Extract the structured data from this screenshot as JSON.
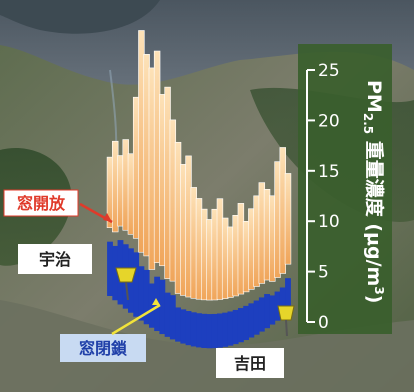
{
  "chart_data": {
    "type": "bar",
    "title": "",
    "axis_label": {
      "main": "PM",
      "subscript": "2.5",
      "rest": " 重量濃度 (μg/m",
      "sup": "3",
      "close": ")"
    },
    "ylim": [
      0,
      25
    ],
    "ticks": [
      "0",
      "5",
      "10",
      "15",
      "20",
      "25"
    ],
    "series": [
      {
        "name": "窓開放",
        "color": "#f4b06a",
        "values": [
          11,
          13,
          12,
          14,
          13,
          19,
          26,
          24,
          23,
          25,
          21,
          22,
          19,
          17,
          15,
          16,
          13,
          12,
          11,
          10,
          11,
          12,
          10,
          9,
          10,
          11,
          9,
          10,
          11,
          12,
          11,
          10,
          13,
          14,
          11
        ]
      },
      {
        "name": "窓閉鎖",
        "color": "#1d3fbf",
        "values": [
          4,
          4,
          5,
          5,
          5,
          5,
          4,
          4,
          3,
          4,
          4,
          3,
          3,
          2,
          2,
          2,
          2,
          2,
          2,
          2,
          2,
          2,
          2,
          2,
          2,
          2,
          2,
          2,
          2,
          2,
          2,
          1.5,
          1.5,
          1.5,
          2
        ]
      }
    ],
    "annotations": {
      "open": "窓開放",
      "closed": "窓閉鎖",
      "place_left": "宇治",
      "place_right": "吉田"
    },
    "colors": {
      "axis_panel": "#3a5e2c",
      "open_label": "#e03a2a",
      "closed_label_bg": "#c8daf2",
      "closed_label_text": "#1f3fa8",
      "pin": "#e6d52a",
      "arrow_red": "#e03a2a",
      "arrow_yellow": "#f2e33a"
    }
  }
}
